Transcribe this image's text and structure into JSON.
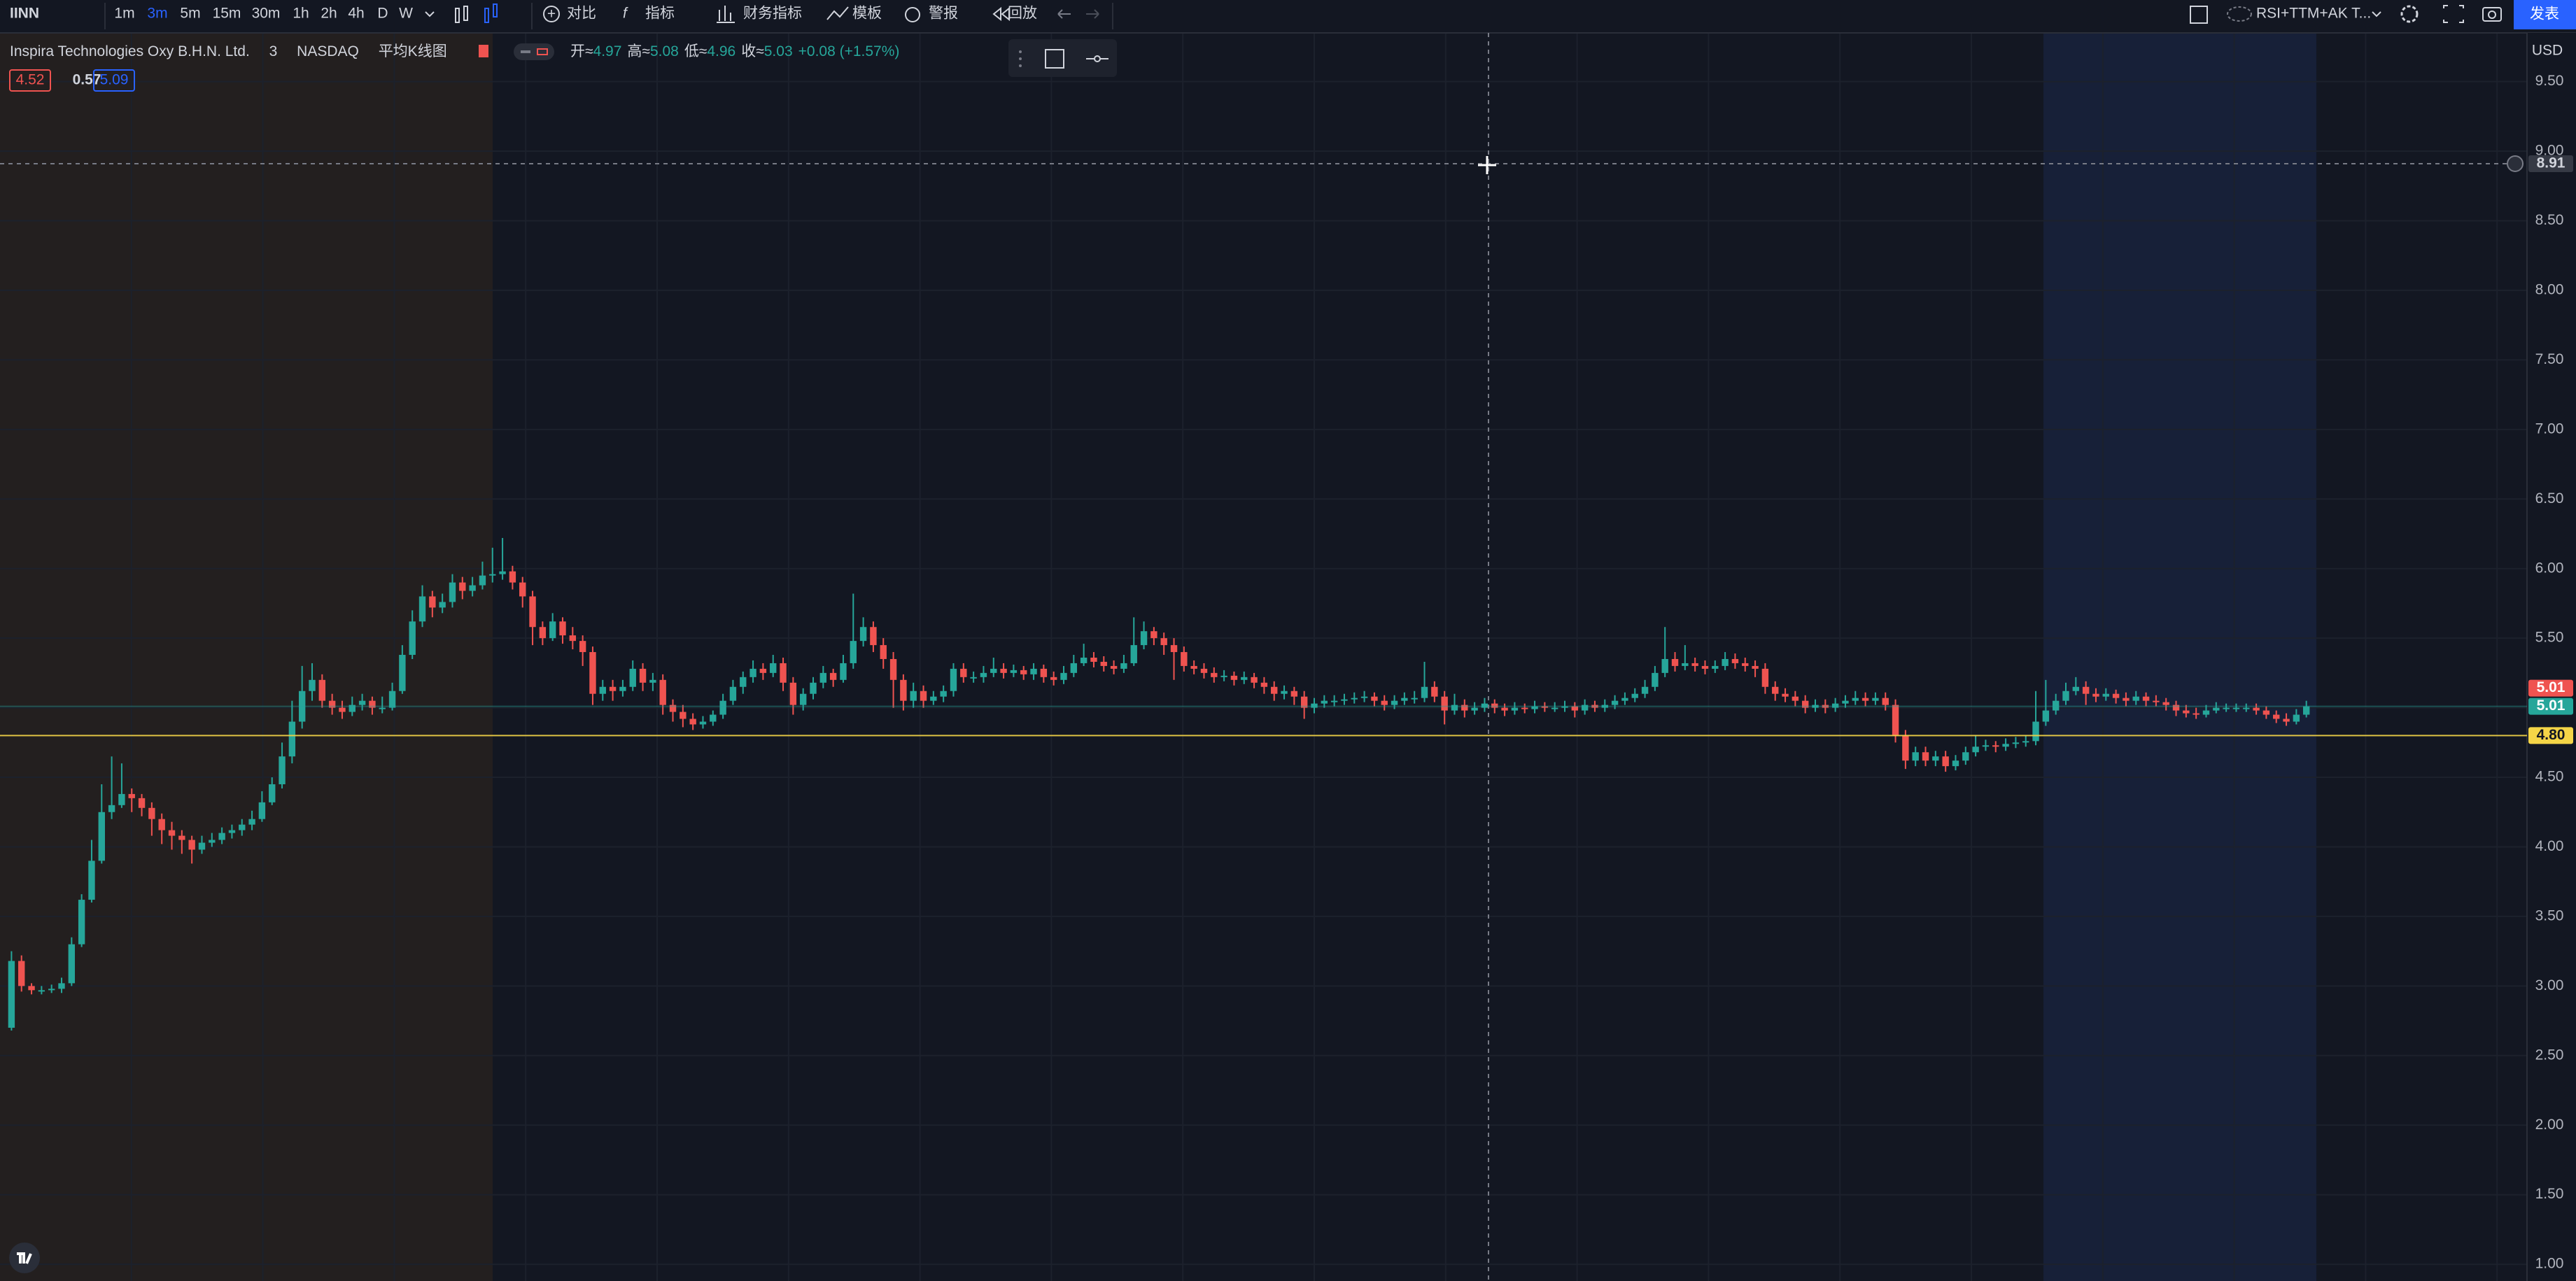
{
  "toolbar": {
    "symbol": "IINN",
    "intervals": [
      "1m",
      "3m",
      "5m",
      "15m",
      "30m",
      "1h",
      "2h",
      "4h",
      "D",
      "W"
    ],
    "active_interval": 1,
    "buttons": [
      "对比",
      "指标",
      "财务指标",
      "模板",
      "警报",
      "回放"
    ],
    "layout_name": "RSI+TTM+AK T...",
    "publish": "发表"
  },
  "legend": {
    "interval": "3",
    "exchange": "NASDAQ",
    "style": "平均K线图",
    "ohlc": [
      {
        "label": "开≈",
        "value": "4.97"
      },
      {
        "label": "高≈",
        "value": "5.08"
      },
      {
        "label": "低≈",
        "value": "4.96"
      },
      {
        "label": "收≈",
        "value": "5.03"
      }
    ],
    "change": "+0.08 (+1.57%)",
    "indicators": [
      {
        "text": "4.52",
        "color": "#ef5350"
      },
      {
        "text": "0.57",
        "color": "#d1d4dc"
      },
      {
        "text": "5.09",
        "color": "#2962ff"
      }
    ]
  },
  "chart_data": {
    "type": "candlestick",
    "title": "Inspira Technologies Oxy B.H.N. Ltd.",
    "currency": "USD",
    "up_color": "#26a69a",
    "down_color": "#ef5350",
    "grid": true,
    "ylim": [
      0.88,
      9.85
    ],
    "yticks": [
      {
        "value": 1,
        "label": "1.00"
      },
      {
        "value": 1.5,
        "label": "1.50"
      },
      {
        "value": 2,
        "label": "2.00"
      },
      {
        "value": 2.5,
        "label": "2.50"
      },
      {
        "value": 3,
        "label": "3.00"
      },
      {
        "value": 3.5,
        "label": "3.50"
      },
      {
        "value": 4,
        "label": "4.00"
      },
      {
        "value": 4.5,
        "label": "4.50"
      },
      {
        "value": 5,
        "label": "5.00"
      },
      {
        "value": 5.5,
        "label": "5.50"
      },
      {
        "value": 6,
        "label": "6.00"
      },
      {
        "value": 6.5,
        "label": "6.50"
      },
      {
        "value": 7,
        "label": "7.00"
      },
      {
        "value": 7.5,
        "label": "7.50"
      },
      {
        "value": 8,
        "label": "8.00"
      },
      {
        "value": 8.5,
        "label": "8.50"
      },
      {
        "value": 9,
        "label": "9.00"
      },
      {
        "value": 9.5,
        "label": "9.50"
      }
    ],
    "price_lines": [
      {
        "value": 5.01,
        "label": "5.01",
        "color": "#ef5350",
        "line": false
      },
      {
        "value": 5.01,
        "label": "5.01",
        "color": "#26a69a",
        "line": true
      },
      {
        "value": 4.8,
        "label": "4.80",
        "color": "#f5d547",
        "line": true
      }
    ],
    "crosshair": {
      "value": 8.91,
      "label": "8.91"
    },
    "ohlc": [
      [
        2.7,
        3.25,
        2.68,
        3.18
      ],
      [
        3.18,
        3.22,
        2.96,
        3.0
      ],
      [
        3.0,
        3.02,
        2.94,
        2.97
      ],
      [
        2.97,
        3.0,
        2.94,
        2.97
      ],
      [
        2.97,
        3.01,
        2.95,
        2.98
      ],
      [
        2.98,
        3.06,
        2.95,
        3.02
      ],
      [
        3.02,
        3.35,
        3.0,
        3.3
      ],
      [
        3.3,
        3.66,
        3.28,
        3.62
      ],
      [
        3.62,
        4.05,
        3.6,
        3.9
      ],
      [
        3.9,
        4.45,
        3.88,
        4.25
      ],
      [
        4.25,
        4.65,
        4.2,
        4.3
      ],
      [
        4.3,
        4.6,
        4.28,
        4.38
      ],
      [
        4.38,
        4.42,
        4.25,
        4.35
      ],
      [
        4.35,
        4.38,
        4.22,
        4.28
      ],
      [
        4.28,
        4.32,
        4.08,
        4.2
      ],
      [
        4.2,
        4.24,
        4.02,
        4.12
      ],
      [
        4.12,
        4.18,
        3.98,
        4.08
      ],
      [
        4.08,
        4.12,
        3.95,
        4.05
      ],
      [
        4.05,
        4.08,
        3.88,
        3.98
      ],
      [
        3.98,
        4.08,
        3.95,
        4.03
      ],
      [
        4.03,
        4.1,
        4.0,
        4.05
      ],
      [
        4.05,
        4.14,
        4.02,
        4.1
      ],
      [
        4.1,
        4.16,
        4.06,
        4.12
      ],
      [
        4.12,
        4.2,
        4.08,
        4.16
      ],
      [
        4.16,
        4.26,
        4.12,
        4.2
      ],
      [
        4.2,
        4.4,
        4.18,
        4.32
      ],
      [
        4.32,
        4.5,
        4.3,
        4.45
      ],
      [
        4.45,
        4.75,
        4.42,
        4.65
      ],
      [
        4.65,
        5.05,
        4.6,
        4.9
      ],
      [
        4.9,
        5.3,
        4.85,
        5.12
      ],
      [
        5.12,
        5.32,
        5.05,
        5.2
      ],
      [
        5.2,
        5.24,
        5.0,
        5.05
      ],
      [
        5.05,
        5.1,
        4.95,
        5.0
      ],
      [
        5.0,
        5.05,
        4.92,
        4.97
      ],
      [
        4.97,
        5.08,
        4.94,
        5.02
      ],
      [
        5.02,
        5.1,
        4.98,
        5.05
      ],
      [
        5.05,
        5.08,
        4.95,
        5.0
      ],
      [
        5.0,
        5.08,
        4.96,
        5.0
      ],
      [
        5.0,
        5.18,
        4.98,
        5.12
      ],
      [
        5.12,
        5.45,
        5.1,
        5.38
      ],
      [
        5.38,
        5.7,
        5.35,
        5.62
      ],
      [
        5.62,
        5.88,
        5.58,
        5.8
      ],
      [
        5.8,
        5.84,
        5.65,
        5.72
      ],
      [
        5.72,
        5.82,
        5.68,
        5.76
      ],
      [
        5.76,
        5.96,
        5.72,
        5.9
      ],
      [
        5.9,
        5.94,
        5.78,
        5.84
      ],
      [
        5.84,
        5.94,
        5.8,
        5.88
      ],
      [
        5.88,
        6.05,
        5.85,
        5.95
      ],
      [
        5.95,
        6.15,
        5.9,
        5.96
      ],
      [
        5.96,
        6.22,
        5.92,
        5.98
      ],
      [
        5.98,
        6.02,
        5.85,
        5.9
      ],
      [
        5.9,
        5.94,
        5.72,
        5.8
      ],
      [
        5.8,
        5.84,
        5.45,
        5.58
      ],
      [
        5.58,
        5.62,
        5.45,
        5.5
      ],
      [
        5.5,
        5.68,
        5.48,
        5.62
      ],
      [
        5.62,
        5.65,
        5.46,
        5.52
      ],
      [
        5.52,
        5.58,
        5.42,
        5.48
      ],
      [
        5.48,
        5.52,
        5.3,
        5.4
      ],
      [
        5.4,
        5.44,
        5.02,
        5.1
      ],
      [
        5.1,
        5.2,
        5.05,
        5.15
      ],
      [
        5.15,
        5.2,
        5.05,
        5.12
      ],
      [
        5.12,
        5.2,
        5.08,
        5.15
      ],
      [
        5.15,
        5.34,
        5.12,
        5.28
      ],
      [
        5.28,
        5.32,
        5.12,
        5.18
      ],
      [
        5.18,
        5.25,
        5.12,
        5.2
      ],
      [
        5.2,
        5.24,
        4.95,
        5.02
      ],
      [
        5.02,
        5.06,
        4.9,
        4.97
      ],
      [
        4.97,
        5.02,
        4.86,
        4.92
      ],
      [
        4.92,
        4.96,
        4.84,
        4.88
      ],
      [
        4.88,
        4.94,
        4.85,
        4.9
      ],
      [
        4.9,
        4.98,
        4.87,
        4.95
      ],
      [
        4.95,
        5.1,
        4.92,
        5.05
      ],
      [
        5.05,
        5.2,
        5.02,
        5.15
      ],
      [
        5.15,
        5.26,
        5.1,
        5.22
      ],
      [
        5.22,
        5.34,
        5.18,
        5.28
      ],
      [
        5.28,
        5.32,
        5.2,
        5.25
      ],
      [
        5.25,
        5.38,
        5.22,
        5.32
      ],
      [
        5.32,
        5.36,
        5.12,
        5.18
      ],
      [
        5.18,
        5.22,
        4.95,
        5.02
      ],
      [
        5.02,
        5.14,
        4.98,
        5.1
      ],
      [
        5.1,
        5.22,
        5.06,
        5.18
      ],
      [
        5.18,
        5.3,
        5.14,
        5.25
      ],
      [
        5.25,
        5.28,
        5.15,
        5.2
      ],
      [
        5.2,
        5.38,
        5.18,
        5.32
      ],
      [
        5.32,
        5.82,
        5.28,
        5.48
      ],
      [
        5.48,
        5.65,
        5.44,
        5.58
      ],
      [
        5.58,
        5.62,
        5.4,
        5.45
      ],
      [
        5.45,
        5.5,
        5.28,
        5.35
      ],
      [
        5.35,
        5.4,
        5.0,
        5.2
      ],
      [
        5.2,
        5.24,
        4.98,
        5.05
      ],
      [
        5.05,
        5.18,
        5.0,
        5.12
      ],
      [
        5.12,
        5.16,
        5.0,
        5.05
      ],
      [
        5.05,
        5.12,
        5.02,
        5.08
      ],
      [
        5.08,
        5.16,
        5.04,
        5.12
      ],
      [
        5.12,
        5.32,
        5.08,
        5.28
      ],
      [
        5.28,
        5.32,
        5.18,
        5.22
      ],
      [
        5.22,
        5.26,
        5.18,
        5.22
      ],
      [
        5.22,
        5.3,
        5.18,
        5.25
      ],
      [
        5.25,
        5.36,
        5.22,
        5.28
      ],
      [
        5.28,
        5.32,
        5.21,
        5.25
      ],
      [
        5.25,
        5.31,
        5.22,
        5.27
      ],
      [
        5.27,
        5.3,
        5.2,
        5.24
      ],
      [
        5.24,
        5.32,
        5.2,
        5.28
      ],
      [
        5.28,
        5.31,
        5.18,
        5.22
      ],
      [
        5.22,
        5.26,
        5.16,
        5.2
      ],
      [
        5.2,
        5.3,
        5.17,
        5.25
      ],
      [
        5.25,
        5.38,
        5.22,
        5.32
      ],
      [
        5.32,
        5.46,
        5.3,
        5.36
      ],
      [
        5.36,
        5.4,
        5.29,
        5.33
      ],
      [
        5.33,
        5.37,
        5.26,
        5.3
      ],
      [
        5.3,
        5.34,
        5.24,
        5.28
      ],
      [
        5.28,
        5.38,
        5.25,
        5.32
      ],
      [
        5.32,
        5.65,
        5.3,
        5.45
      ],
      [
        5.45,
        5.62,
        5.42,
        5.55
      ],
      [
        5.55,
        5.58,
        5.45,
        5.5
      ],
      [
        5.5,
        5.54,
        5.38,
        5.45
      ],
      [
        5.45,
        5.5,
        5.2,
        5.4
      ],
      [
        5.4,
        5.44,
        5.26,
        5.3
      ],
      [
        5.3,
        5.34,
        5.24,
        5.28
      ],
      [
        5.28,
        5.32,
        5.21,
        5.25
      ],
      [
        5.25,
        5.29,
        5.18,
        5.22
      ],
      [
        5.22,
        5.27,
        5.19,
        5.23
      ],
      [
        5.23,
        5.26,
        5.16,
        5.2
      ],
      [
        5.2,
        5.26,
        5.17,
        5.22
      ],
      [
        5.22,
        5.25,
        5.14,
        5.18
      ],
      [
        5.18,
        5.22,
        5.1,
        5.15
      ],
      [
        5.15,
        5.19,
        5.05,
        5.1
      ],
      [
        5.1,
        5.16,
        5.06,
        5.12
      ],
      [
        5.12,
        5.15,
        5.02,
        5.08
      ],
      [
        5.08,
        5.12,
        4.92,
        5.0
      ],
      [
        5.0,
        5.07,
        4.96,
        5.03
      ],
      [
        5.03,
        5.09,
        5.0,
        5.05
      ],
      [
        5.05,
        5.09,
        5.01,
        5.05
      ],
      [
        5.05,
        5.1,
        5.02,
        5.06
      ],
      [
        5.06,
        5.11,
        5.03,
        5.07
      ],
      [
        5.07,
        5.12,
        5.04,
        5.08
      ],
      [
        5.08,
        5.11,
        5.01,
        5.05
      ],
      [
        5.05,
        5.09,
        4.98,
        5.02
      ],
      [
        5.02,
        5.09,
        4.99,
        5.05
      ],
      [
        5.05,
        5.11,
        5.02,
        5.07
      ],
      [
        5.07,
        5.12,
        5.03,
        5.07
      ],
      [
        5.07,
        5.33,
        5.04,
        5.15
      ],
      [
        5.15,
        5.19,
        5.04,
        5.08
      ],
      [
        5.08,
        5.12,
        4.88,
        4.98
      ],
      [
        4.98,
        5.1,
        4.95,
        5.02
      ],
      [
        5.02,
        5.06,
        4.93,
        4.98
      ],
      [
        4.98,
        5.04,
        4.95,
        5.0
      ],
      [
        5.0,
        5.07,
        4.97,
        5.03
      ],
      [
        5.03,
        5.06,
        4.96,
        5.0
      ],
      [
        5.0,
        5.03,
        4.94,
        4.98
      ],
      [
        4.98,
        5.04,
        4.95,
        5.0
      ],
      [
        5.0,
        5.03,
        4.96,
        4.99
      ],
      [
        4.99,
        5.05,
        4.96,
        5.01
      ],
      [
        5.01,
        5.04,
        4.97,
        5.0
      ],
      [
        5.0,
        5.04,
        4.97,
        5.0
      ],
      [
        5.0,
        5.05,
        4.97,
        5.01
      ],
      [
        5.01,
        5.04,
        4.93,
        4.98
      ],
      [
        4.98,
        5.06,
        4.95,
        5.02
      ],
      [
        5.02,
        5.05,
        4.97,
        5.0
      ],
      [
        5.0,
        5.06,
        4.97,
        5.02
      ],
      [
        5.02,
        5.09,
        4.99,
        5.05
      ],
      [
        5.05,
        5.11,
        5.02,
        5.07
      ],
      [
        5.07,
        5.14,
        5.04,
        5.1
      ],
      [
        5.1,
        5.2,
        5.07,
        5.15
      ],
      [
        5.15,
        5.3,
        5.12,
        5.25
      ],
      [
        5.25,
        5.58,
        5.22,
        5.35
      ],
      [
        5.35,
        5.4,
        5.26,
        5.3
      ],
      [
        5.3,
        5.45,
        5.27,
        5.32
      ],
      [
        5.32,
        5.36,
        5.26,
        5.3
      ],
      [
        5.3,
        5.34,
        5.24,
        5.28
      ],
      [
        5.28,
        5.34,
        5.25,
        5.3
      ],
      [
        5.3,
        5.4,
        5.27,
        5.35
      ],
      [
        5.35,
        5.39,
        5.28,
        5.32
      ],
      [
        5.32,
        5.36,
        5.26,
        5.3
      ],
      [
        5.3,
        5.34,
        5.22,
        5.28
      ],
      [
        5.28,
        5.32,
        5.1,
        5.15
      ],
      [
        5.15,
        5.19,
        5.05,
        5.1
      ],
      [
        5.1,
        5.14,
        5.04,
        5.08
      ],
      [
        5.08,
        5.12,
        5.01,
        5.05
      ],
      [
        5.05,
        5.09,
        4.96,
        5.0
      ],
      [
        5.0,
        5.06,
        4.97,
        5.02
      ],
      [
        5.02,
        5.06,
        4.96,
        5.0
      ],
      [
        5.0,
        5.07,
        4.97,
        5.03
      ],
      [
        5.03,
        5.09,
        5.0,
        5.05
      ],
      [
        5.05,
        5.12,
        5.02,
        5.07
      ],
      [
        5.07,
        5.11,
        5.01,
        5.05
      ],
      [
        5.05,
        5.11,
        5.02,
        5.07
      ],
      [
        5.07,
        5.11,
        4.98,
        5.02
      ],
      [
        5.02,
        5.06,
        4.75,
        4.8
      ],
      [
        4.8,
        4.84,
        4.56,
        4.62
      ],
      [
        4.62,
        4.72,
        4.58,
        4.68
      ],
      [
        4.68,
        4.72,
        4.58,
        4.62
      ],
      [
        4.62,
        4.69,
        4.58,
        4.65
      ],
      [
        4.65,
        4.69,
        4.54,
        4.58
      ],
      [
        4.58,
        4.66,
        4.55,
        4.62
      ],
      [
        4.62,
        4.72,
        4.59,
        4.68
      ],
      [
        4.68,
        4.8,
        4.65,
        4.72
      ],
      [
        4.72,
        4.77,
        4.69,
        4.73
      ],
      [
        4.73,
        4.76,
        4.68,
        4.72
      ],
      [
        4.72,
        4.78,
        4.69,
        4.74
      ],
      [
        4.74,
        4.79,
        4.71,
        4.75
      ],
      [
        4.75,
        4.8,
        4.72,
        4.76
      ],
      [
        4.76,
        5.12,
        4.73,
        4.9
      ],
      [
        4.9,
        5.2,
        4.87,
        4.98
      ],
      [
        4.98,
        5.1,
        4.95,
        5.05
      ],
      [
        5.05,
        5.18,
        5.02,
        5.12
      ],
      [
        5.12,
        5.22,
        5.09,
        5.15
      ],
      [
        5.15,
        5.19,
        5.02,
        5.1
      ],
      [
        5.1,
        5.14,
        5.04,
        5.08
      ],
      [
        5.08,
        5.14,
        5.05,
        5.1
      ],
      [
        5.1,
        5.13,
        5.03,
        5.07
      ],
      [
        5.07,
        5.11,
        5.01,
        5.05
      ],
      [
        5.05,
        5.12,
        5.02,
        5.08
      ],
      [
        5.08,
        5.11,
        5.01,
        5.05
      ],
      [
        5.05,
        5.09,
        5.01,
        5.04
      ],
      [
        5.04,
        5.07,
        4.98,
        5.02
      ],
      [
        5.02,
        5.05,
        4.94,
        4.98
      ],
      [
        4.98,
        5.02,
        4.93,
        4.96
      ],
      [
        4.96,
        5.0,
        4.92,
        4.95
      ],
      [
        4.95,
        5.02,
        4.93,
        4.98
      ],
      [
        4.98,
        5.04,
        4.96,
        5.0
      ],
      [
        5.0,
        5.03,
        4.97,
        5.0
      ],
      [
        5.0,
        5.03,
        4.97,
        5.0
      ],
      [
        5.0,
        5.03,
        4.97,
        5.0
      ],
      [
        5.0,
        5.03,
        4.95,
        4.98
      ],
      [
        4.98,
        5.01,
        4.92,
        4.95
      ],
      [
        4.95,
        4.98,
        4.89,
        4.92
      ],
      [
        4.92,
        4.96,
        4.87,
        4.9
      ],
      [
        4.9,
        4.99,
        4.88,
        4.95
      ],
      [
        4.95,
        5.05,
        4.93,
        5.01
      ]
    ]
  }
}
